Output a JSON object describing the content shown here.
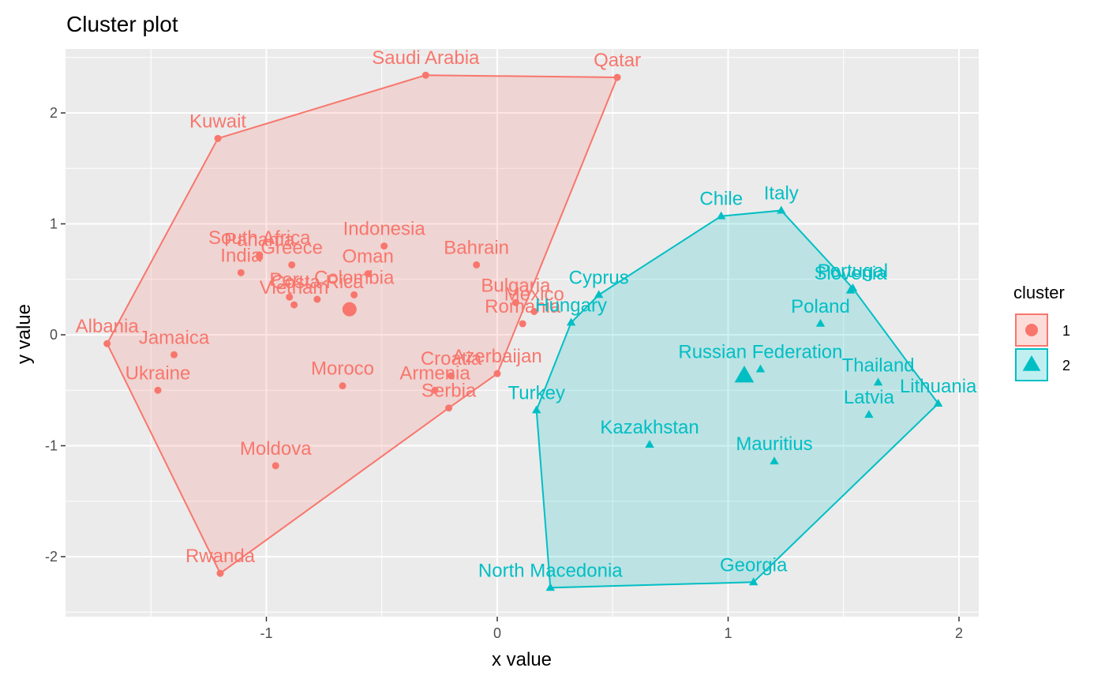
{
  "chart_data": {
    "type": "scatter",
    "title": "Cluster plot",
    "xlabel": "x value",
    "ylabel": "y value",
    "xlim": [
      -1.87,
      2.07
    ],
    "ylim": [
      -2.52,
      2.55
    ],
    "x_ticks": [
      -1,
      0,
      1,
      2
    ],
    "y_ticks": [
      -2,
      -1,
      0,
      1,
      2
    ],
    "grid": true,
    "legend_position": "right",
    "legend": {
      "title": "cluster",
      "entries": [
        {
          "label": "1",
          "color": "#F8766D",
          "marker": "circle"
        },
        {
          "label": "2",
          "color": "#00BFC4",
          "marker": "triangle"
        }
      ]
    },
    "series": [
      {
        "name": "1",
        "color": "#F8766D",
        "marker": "circle",
        "centroid": [
          -0.64,
          0.23
        ],
        "points": [
          {
            "label": "Saudi Arabia",
            "x": -0.31,
            "y": 2.34
          },
          {
            "label": "Qatar",
            "x": 0.52,
            "y": 2.32
          },
          {
            "label": "Kuwait",
            "x": -1.21,
            "y": 1.77
          },
          {
            "label": "Indonesia",
            "x": -0.49,
            "y": 0.8
          },
          {
            "label": "South Africa",
            "x": -1.03,
            "y": 0.72
          },
          {
            "label": "Panama",
            "x": -1.03,
            "y": 0.7
          },
          {
            "label": "Greece",
            "x": -0.89,
            "y": 0.63
          },
          {
            "label": "Oman",
            "x": -0.56,
            "y": 0.55
          },
          {
            "label": "India",
            "x": -1.11,
            "y": 0.56
          },
          {
            "label": "Colombia",
            "x": -0.62,
            "y": 0.36
          },
          {
            "label": "Costa Rica",
            "x": -0.78,
            "y": 0.32
          },
          {
            "label": "Vietnam",
            "x": -0.88,
            "y": 0.27
          },
          {
            "label": "Peru",
            "x": -0.9,
            "y": 0.34
          },
          {
            "label": "Bahrain",
            "x": -0.09,
            "y": 0.63
          },
          {
            "label": "Bulgaria",
            "x": 0.08,
            "y": 0.29
          },
          {
            "label": "Mexico",
            "x": 0.16,
            "y": 0.21
          },
          {
            "label": "Romania",
            "x": 0.11,
            "y": 0.1
          },
          {
            "label": "Albania",
            "x": -1.69,
            "y": -0.08
          },
          {
            "label": "Jamaica",
            "x": -1.4,
            "y": -0.18
          },
          {
            "label": "Ukraine",
            "x": -1.47,
            "y": -0.5
          },
          {
            "label": "Moroco",
            "x": -0.67,
            "y": -0.46
          },
          {
            "label": "Croatia",
            "x": -0.2,
            "y": -0.37
          },
          {
            "label": "Azerbaijan",
            "x": 0.0,
            "y": -0.35
          },
          {
            "label": "Armenia",
            "x": -0.27,
            "y": -0.5
          },
          {
            "label": "Serbia",
            "x": -0.21,
            "y": -0.66
          },
          {
            "label": "Moldova",
            "x": -0.96,
            "y": -1.18
          },
          {
            "label": "Rwanda",
            "x": -1.2,
            "y": -2.15
          }
        ],
        "hull": [
          "Albania",
          "Kuwait",
          "Saudi Arabia",
          "Qatar",
          "Azerbaijan",
          "Serbia",
          "Rwanda"
        ]
      },
      {
        "name": "2",
        "color": "#00BFC4",
        "marker": "triangle",
        "centroid": [
          1.07,
          -0.37
        ],
        "points": [
          {
            "label": "Chile",
            "x": 0.97,
            "y": 1.07
          },
          {
            "label": "Italy",
            "x": 1.23,
            "y": 1.12
          },
          {
            "label": "Cyprus",
            "x": 0.44,
            "y": 0.36
          },
          {
            "label": "Hungary",
            "x": 0.32,
            "y": 0.11
          },
          {
            "label": "Portugal",
            "x": 1.54,
            "y": 0.42
          },
          {
            "label": "Slovenia",
            "x": 1.53,
            "y": 0.4
          },
          {
            "label": "Poland",
            "x": 1.4,
            "y": 0.1
          },
          {
            "label": "Russian Federation",
            "x": 1.14,
            "y": -0.31
          },
          {
            "label": "Thailand",
            "x": 1.65,
            "y": -0.43
          },
          {
            "label": "Lithuania",
            "x": 1.91,
            "y": -0.62
          },
          {
            "label": "Latvia",
            "x": 1.61,
            "y": -0.72
          },
          {
            "label": "Turkey",
            "x": 0.17,
            "y": -0.68
          },
          {
            "label": "Kazakhstan",
            "x": 0.66,
            "y": -0.99
          },
          {
            "label": "Mauritius",
            "x": 1.2,
            "y": -1.14
          },
          {
            "label": "North Macedonia",
            "x": 0.23,
            "y": -2.28
          },
          {
            "label": "Georgia",
            "x": 1.11,
            "y": -2.23
          }
        ],
        "hull": [
          "Turkey",
          "Hungary",
          "Cyprus",
          "Chile",
          "Italy",
          "Portugal",
          "Lithuania",
          "Georgia",
          "North Macedonia"
        ]
      }
    ]
  }
}
